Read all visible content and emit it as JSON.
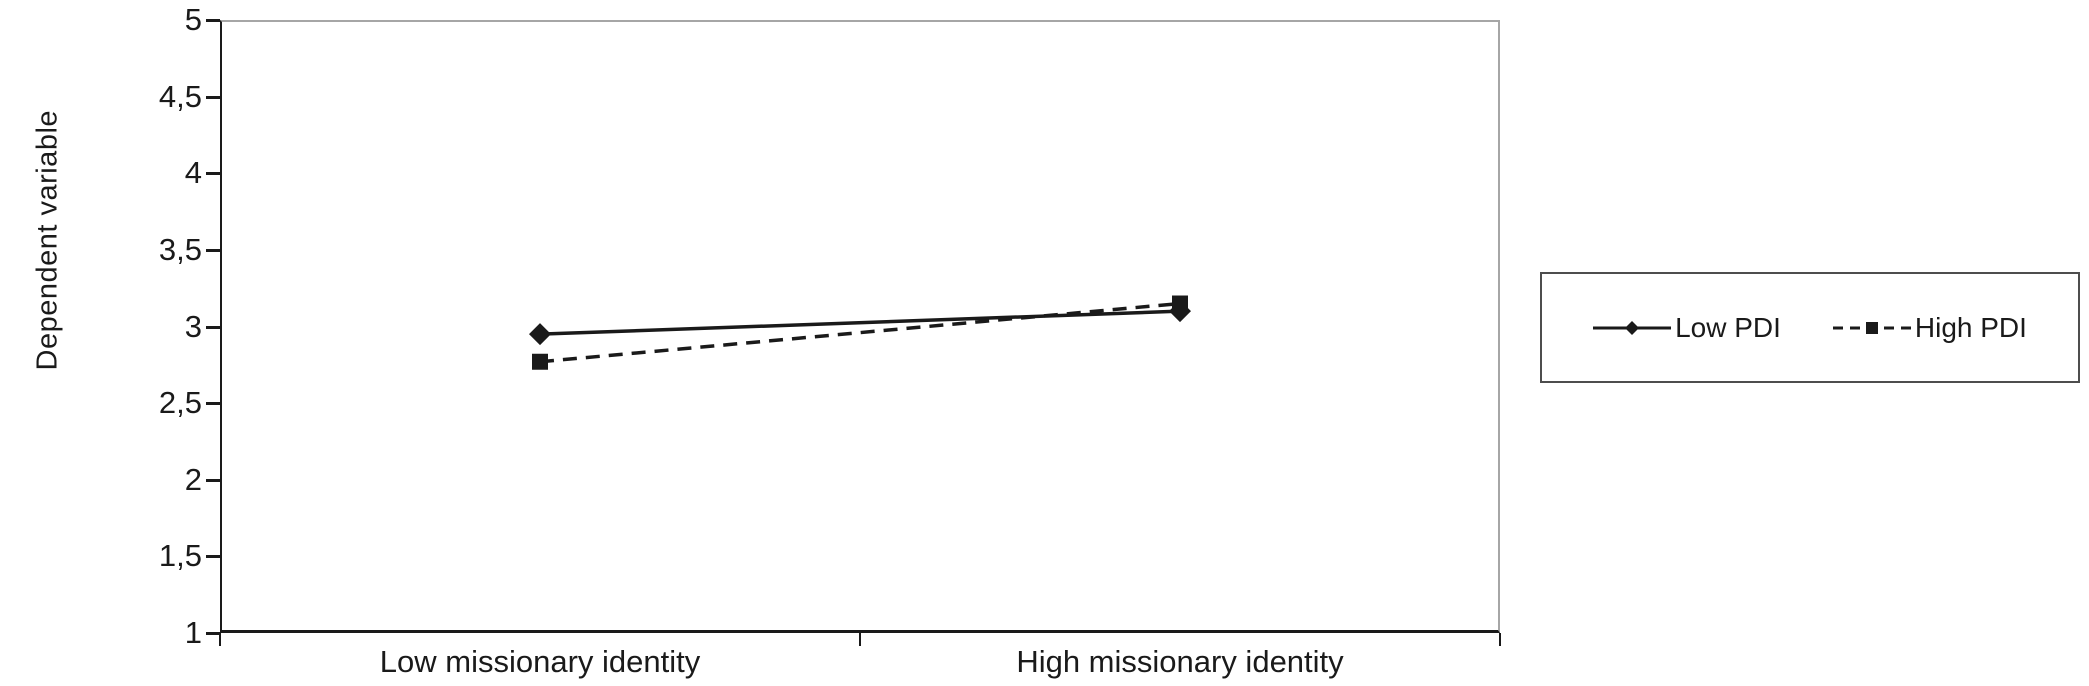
{
  "chart_data": {
    "type": "line",
    "title": "",
    "xlabel": "",
    "ylabel": "Dependent variable",
    "categories": [
      "Low missionary identity",
      "High missionary identity"
    ],
    "series": [
      {
        "name": "Low PDI",
        "values": [
          2.95,
          3.1
        ],
        "line_style": "solid",
        "marker": "diamond",
        "color": "#1a1a1a"
      },
      {
        "name": "High PDI",
        "values": [
          2.77,
          3.15
        ],
        "line_style": "dashed",
        "marker": "square",
        "color": "#1a1a1a"
      }
    ],
    "ylim": [
      1,
      5
    ],
    "yticks": [
      {
        "value": 5,
        "label": "5"
      },
      {
        "value": 4.5,
        "label": "4,5"
      },
      {
        "value": 4,
        "label": "4"
      },
      {
        "value": 3.5,
        "label": "3,5"
      },
      {
        "value": 3,
        "label": "3"
      },
      {
        "value": 2.5,
        "label": "2,5"
      },
      {
        "value": 2,
        "label": "2"
      },
      {
        "value": 1.5,
        "label": "1,5"
      },
      {
        "value": 1,
        "label": "1"
      }
    ],
    "decimal_separator": ",",
    "grid": false,
    "legend_position": "right",
    "colors": {
      "axis": "#1a1a1a",
      "plot_frame": "#a6a6a6",
      "legend_border": "#4d4d4d",
      "text": "#1a1a1a",
      "background": "#ffffff"
    }
  }
}
